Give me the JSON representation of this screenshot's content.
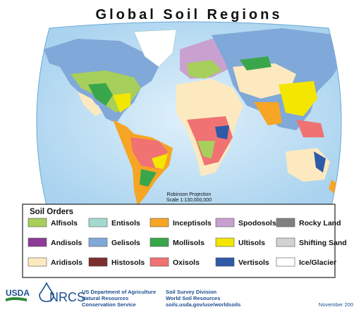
{
  "header": {
    "title": "Global Soil Regions"
  },
  "map": {
    "projection": "Robinson Projection",
    "scale": "Scale 1:130,000,000"
  },
  "legend": {
    "title": "Soil Orders",
    "items": [
      {
        "label": "Alfisols",
        "color": "#a6cf5b"
      },
      {
        "label": "Andisols",
        "color": "#8e3b97"
      },
      {
        "label": "Aridisols",
        "color": "#fde9bf"
      },
      {
        "label": "Entisols",
        "color": "#a3dad0"
      },
      {
        "label": "Gelisols",
        "color": "#80a8d8"
      },
      {
        "label": "Histosols",
        "color": "#7b2f2f"
      },
      {
        "label": "Inceptisols",
        "color": "#f6a524"
      },
      {
        "label": "Mollisols",
        "color": "#3aa64b"
      },
      {
        "label": "Oxisols",
        "color": "#f07272"
      },
      {
        "label": "Spodosols",
        "color": "#c9a1d1"
      },
      {
        "label": "Ultisols",
        "color": "#f3e600"
      },
      {
        "label": "Vertisols",
        "color": "#2f5aa8"
      },
      {
        "label": "Rocky Land",
        "color": "#808080"
      },
      {
        "label": "Shifting Sand",
        "color": "#d2d2d2"
      },
      {
        "label": "Ice/Glacier",
        "color": "#ffffff"
      }
    ]
  },
  "footer": {
    "usda": "USDA",
    "nrcs": "NRCS",
    "agency": [
      "US Department of Agriculture",
      "Natural Resources",
      "Conservation Service"
    ],
    "division": [
      "Soil Survey Division",
      "World Soil Resources",
      "soils.usda.gov/use/worldsoils"
    ],
    "date": "November 200"
  }
}
